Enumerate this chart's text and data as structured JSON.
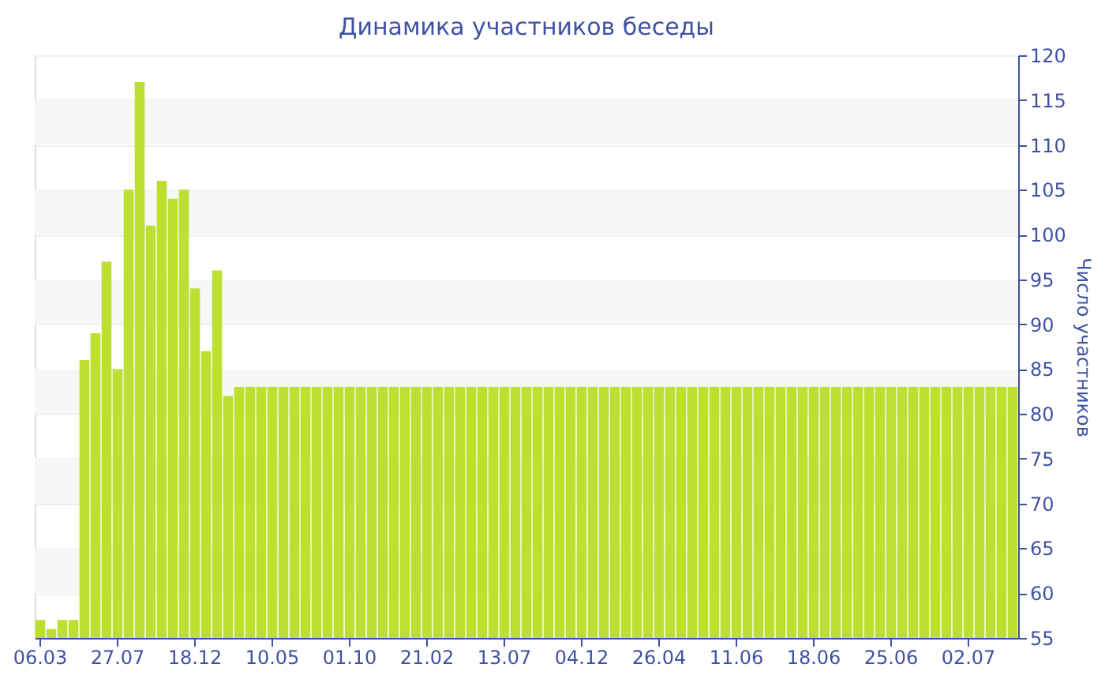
{
  "chart_data": {
    "type": "bar",
    "title": "Динамика участников беседы",
    "ylabel": "Число участников",
    "categories": [
      "06.03",
      null,
      null,
      null,
      null,
      null,
      null,
      "27.07",
      null,
      null,
      null,
      null,
      null,
      null,
      "18.12",
      null,
      null,
      null,
      null,
      null,
      null,
      "10.05",
      null,
      null,
      null,
      null,
      null,
      null,
      "01.10",
      null,
      null,
      null,
      null,
      null,
      null,
      "21.02",
      null,
      null,
      null,
      null,
      null,
      null,
      "13.07",
      null,
      null,
      null,
      null,
      null,
      null,
      "04.12",
      null,
      null,
      null,
      null,
      null,
      null,
      "26.04",
      null,
      null,
      null,
      null,
      null,
      null,
      "11.06",
      null,
      null,
      null,
      null,
      null,
      null,
      "18.06",
      null,
      null,
      null,
      null,
      null,
      null,
      "25.06",
      null,
      null,
      null,
      null,
      null,
      null,
      "02.07",
      null,
      null,
      null,
      null
    ],
    "values": [
      57,
      56,
      57,
      57,
      86,
      89,
      97,
      85,
      105,
      117,
      101,
      106,
      104,
      105,
      94,
      87,
      96,
      82,
      83,
      83,
      83,
      83,
      83,
      83,
      83,
      83,
      83,
      83,
      83,
      83,
      83,
      83,
      83,
      83,
      83,
      83,
      83,
      83,
      83,
      83,
      83,
      83,
      83,
      83,
      83,
      83,
      83,
      83,
      83,
      83,
      83,
      83,
      83,
      83,
      83,
      83,
      83,
      83,
      83,
      83,
      83,
      83,
      83,
      83,
      83,
      83,
      83,
      83,
      83,
      83,
      83,
      83,
      83,
      83,
      83,
      83,
      83,
      83,
      83,
      83,
      83,
      83,
      83,
      83,
      83,
      83,
      83,
      83,
      83
    ],
    "color": "#bde030",
    "ylim": [
      55,
      120
    ],
    "yticks": [
      55,
      60,
      65,
      70,
      75,
      80,
      85,
      90,
      95,
      100,
      105,
      110,
      115,
      120
    ],
    "grid": true
  }
}
